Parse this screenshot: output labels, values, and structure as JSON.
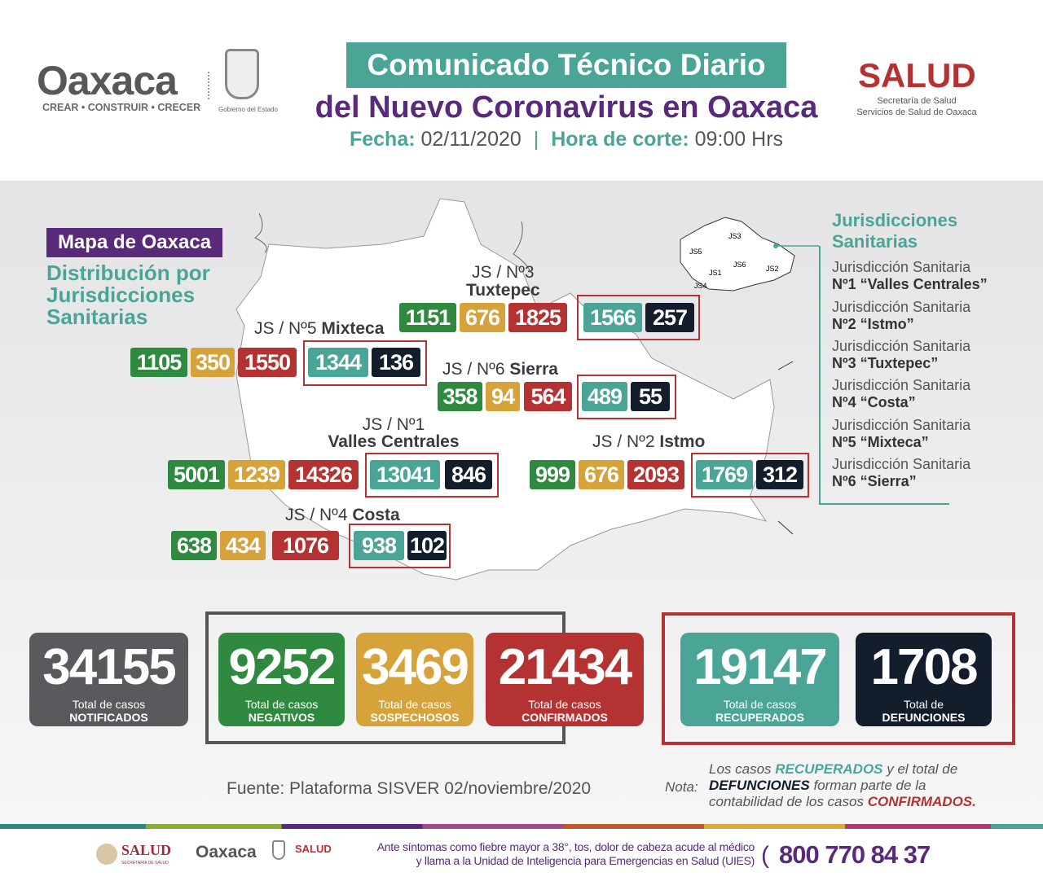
{
  "header": {
    "logo_oaxaca": "Oaxaca",
    "logo_tagline": "CREAR • CONSTRUIR • CRECER",
    "gov": "Gobierno del Estado",
    "title_line1": "Comunicado Técnico Diario",
    "title_line2": "del Nuevo Coronavirus en Oaxaca",
    "fecha_label": "Fecha:",
    "fecha": "02/11/2020",
    "hora_label": "Hora de corte:",
    "hora": "09:00 Hrs",
    "salud": "SALUD",
    "salud_sub1": "Secretaría de Salud",
    "salud_sub2": "Servicios de Salud de Oaxaca"
  },
  "map": {
    "title": "Mapa de Oaxaca",
    "subtitle": "Distribución por Jurisdicciones Sanitarias",
    "inset_labels": [
      "JS1",
      "JS2",
      "JS3",
      "JS4",
      "JS5",
      "JS6"
    ],
    "regions": {
      "tuxtepec": {
        "label1": "JS / Nº3",
        "label2": "Tuxtepec",
        "negativos": "1151",
        "sospechosos": "676",
        "confirmados": "1825",
        "recuperados": "1566",
        "defunciones": "257"
      },
      "mixteca": {
        "label1": "JS / Nº5",
        "label2": "Mixteca",
        "negativos": "1105",
        "sospechosos": "350",
        "confirmados": "1550",
        "recuperados": "1344",
        "defunciones": "136"
      },
      "sierra": {
        "label1": "JS / Nº6",
        "label2": "Sierra",
        "negativos": "358",
        "sospechosos": "94",
        "confirmados": "564",
        "recuperados": "489",
        "defunciones": "55"
      },
      "valles": {
        "label1": "JS / Nº1",
        "label2": "Valles Centrales",
        "negativos": "5001",
        "sospechosos": "1239",
        "confirmados": "14326",
        "recuperados": "13041",
        "defunciones": "846"
      },
      "istmo": {
        "label1": "JS / Nº2",
        "label2": "Istmo",
        "negativos": "999",
        "sospechosos": "676",
        "confirmados": "2093",
        "recuperados": "1769",
        "defunciones": "312"
      },
      "costa": {
        "label1": "JS / Nº4",
        "label2": "Costa",
        "negativos": "638",
        "sospechosos": "434",
        "confirmados": "1076",
        "recuperados": "938",
        "defunciones": "102"
      }
    }
  },
  "legend": {
    "title": "Jurisdicciones Sanitarias",
    "items": [
      {
        "l1": "Jurisdicción Sanitaria",
        "l2": "Nº1 “Valles Centrales”"
      },
      {
        "l1": "Jurisdicción Sanitaria",
        "l2": "Nº2 “Istmo”"
      },
      {
        "l1": "Jurisdicción Sanitaria",
        "l2": "Nº3 “Tuxtepec”"
      },
      {
        "l1": "Jurisdicción Sanitaria",
        "l2": "Nº4 “Costa”"
      },
      {
        "l1": "Jurisdicción Sanitaria",
        "l2": "Nº5 “Mixteca”"
      },
      {
        "l1": "Jurisdicción Sanitaria",
        "l2": "Nº6 “Sierra”"
      }
    ]
  },
  "totals": [
    {
      "value": "34155",
      "l1": "Total de casos",
      "l2": "NOTIFICADOS",
      "color": "#5b595d"
    },
    {
      "value": "9252",
      "l1": "Total de casos",
      "l2": "NEGATIVOS",
      "color": "#2f8a3f"
    },
    {
      "value": "3469",
      "l1": "Total de casos",
      "l2": "SOSPECHOSOS",
      "color": "#d6a23a"
    },
    {
      "value": "21434",
      "l1": "Total de casos",
      "l2": "CONFIRMADOS",
      "color": "#b53232"
    },
    {
      "value": "19147",
      "l1": "Total de casos",
      "l2": "RECUPERADOS",
      "color": "#4aa597"
    },
    {
      "value": "1708",
      "l1": "Total de",
      "l2": "DEFUNCIONES",
      "color": "#141d2b"
    }
  ],
  "source": "Fuente: Plataforma SISVER 02/noviembre/2020",
  "note": {
    "label": "Nota:",
    "a": "Los casos ",
    "b": "RECUPERADOS",
    "c": " y el total de",
    "d": "DEFUNCIONES",
    "e": " forman parte de la",
    "f": "contabilidad de los casos ",
    "g": "CONFIRMADOS."
  },
  "footer": {
    "salud": "SALUD",
    "salud_sub": "SECRETARÍA DE SALUD",
    "oaxaca": "Oaxaca",
    "salud2": "SALUD",
    "line1": "Ante síntomas como fiebre mayor a 38°, tos, dolor de cabeza acude al médico",
    "line2a": "y llama a la ",
    "line2b": "Unidad de Inteligencia para Emergencias en Salud (UIES)",
    "phone": "800 770 84 37"
  },
  "colors": {
    "teal": "#4aa597",
    "purple": "#5a2a7a",
    "green": "#2f8a3f",
    "yellow": "#d6a23a",
    "red": "#b53232",
    "navy": "#141d2b"
  }
}
